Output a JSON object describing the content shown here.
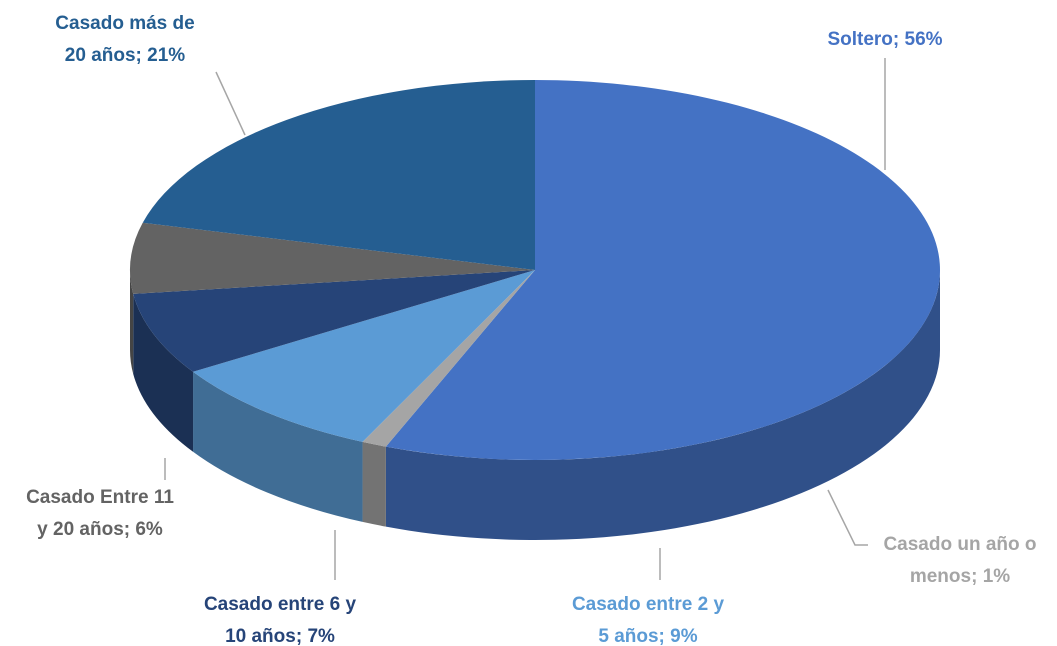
{
  "chart_data": {
    "type": "pie",
    "values": [
      56,
      1,
      9,
      7,
      6,
      21
    ],
    "value_labels": [
      [
        "Soltero; 56%"
      ],
      [
        "Casado un año o",
        "menos; 1%"
      ],
      [
        "Casado entre 2 y",
        "5 años; 9%"
      ],
      [
        "Casado entre 6 y",
        "10 años; 7%"
      ],
      [
        "Casado Entre 11",
        "y 20 años; 6%"
      ],
      [
        "Casado más de",
        "20 años; 21%"
      ]
    ],
    "colors": [
      "#4472c4",
      "#a5a5a5",
      "#5b9bd5",
      "#264478",
      "#636363",
      "#255e91"
    ]
  }
}
